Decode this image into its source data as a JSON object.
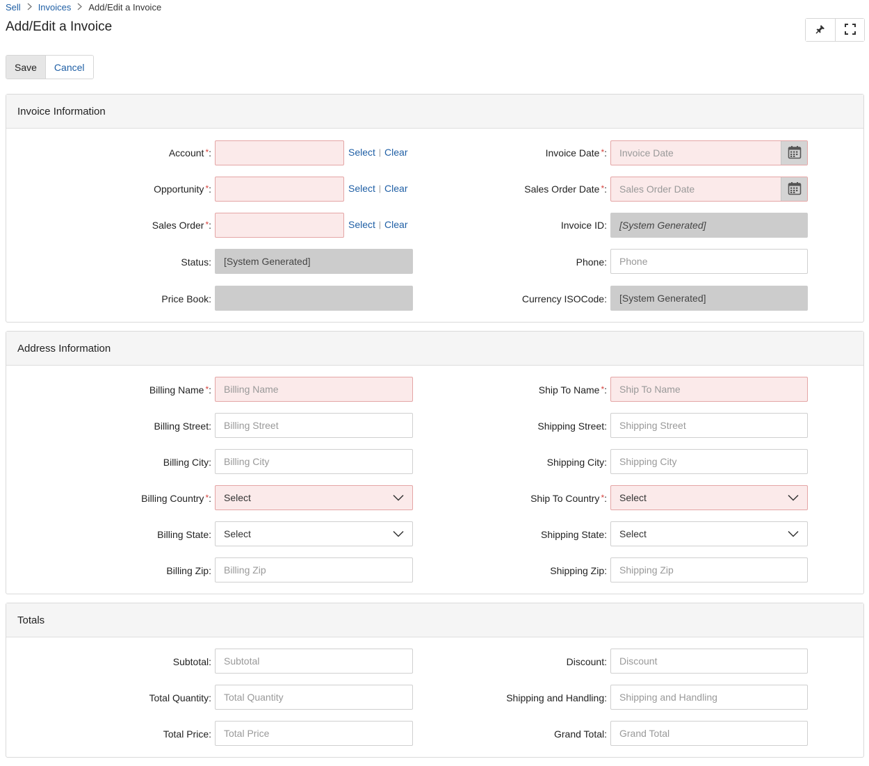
{
  "breadcrumb": {
    "root": "Sell",
    "parent": "Invoices",
    "current": "Add/Edit a Invoice"
  },
  "page": {
    "title": "Add/Edit a Invoice"
  },
  "toolbar": {
    "save_label": "Save",
    "cancel_label": "Cancel"
  },
  "links": {
    "select": "Select",
    "clear": "Clear"
  },
  "invoice": {
    "header": "Invoice Information",
    "account_label": "Account",
    "opportunity_label": "Opportunity",
    "sales_order_label": "Sales Order",
    "status_label": "Status:",
    "status_value": "[System Generated]",
    "price_book_label": "Price Book:",
    "invoice_date_label": "Invoice Date",
    "invoice_date_placeholder": "Invoice Date",
    "sales_order_date_label": "Sales Order Date",
    "sales_order_date_placeholder": "Sales Order Date",
    "invoice_id_label": "Invoice ID:",
    "invoice_id_value": "[System Generated]",
    "phone_label": "Phone:",
    "phone_placeholder": "Phone",
    "currency_label": "Currency ISOCode:",
    "currency_value": "[System Generated]"
  },
  "address": {
    "header": "Address Information",
    "billing_name_label": "Billing Name",
    "billing_name_placeholder": "Billing Name",
    "billing_street_label": "Billing Street:",
    "billing_street_placeholder": "Billing Street",
    "billing_city_label": "Billing City:",
    "billing_city_placeholder": "Billing City",
    "billing_country_label": "Billing Country",
    "billing_country_value": "Select",
    "billing_state_label": "Billing State:",
    "billing_state_value": "Select",
    "billing_zip_label": "Billing Zip:",
    "billing_zip_placeholder": "Billing Zip",
    "ship_to_name_label": "Ship To Name",
    "ship_to_name_placeholder": "Ship To Name",
    "shipping_street_label": "Shipping Street:",
    "shipping_street_placeholder": "Shipping Street",
    "shipping_city_label": "Shipping City:",
    "shipping_city_placeholder": "Shipping City",
    "ship_to_country_label": "Ship To Country",
    "ship_to_country_value": "Select",
    "shipping_state_label": "Shipping State:",
    "shipping_state_value": "Select",
    "shipping_zip_label": "Shipping Zip:",
    "shipping_zip_placeholder": "Shipping Zip"
  },
  "totals": {
    "header": "Totals",
    "subtotal_label": "Subtotal:",
    "subtotal_placeholder": "Subtotal",
    "total_quantity_label": "Total Quantity:",
    "total_quantity_placeholder": "Total Quantity",
    "total_price_label": "Total Price:",
    "total_price_placeholder": "Total Price",
    "discount_label": "Discount:",
    "discount_placeholder": "Discount",
    "shipping_handling_label": "Shipping and Handling:",
    "shipping_handling_placeholder": "Shipping and Handling",
    "grand_total_label": "Grand Total:",
    "grand_total_placeholder": "Grand Total"
  },
  "icons": {
    "pin": "pin-icon",
    "fullscreen": "fullscreen-icon",
    "calendar": "calendar-icon",
    "chevron": "chevron-down-icon",
    "breadcrumb_sep": "chevron-right-icon"
  },
  "colors": {
    "link": "#1f5fa5",
    "required_bg": "#fbeaea",
    "required_border": "#e4a5a5",
    "readonly_bg": "#cccccc",
    "asterisk": "#d43f3a"
  }
}
